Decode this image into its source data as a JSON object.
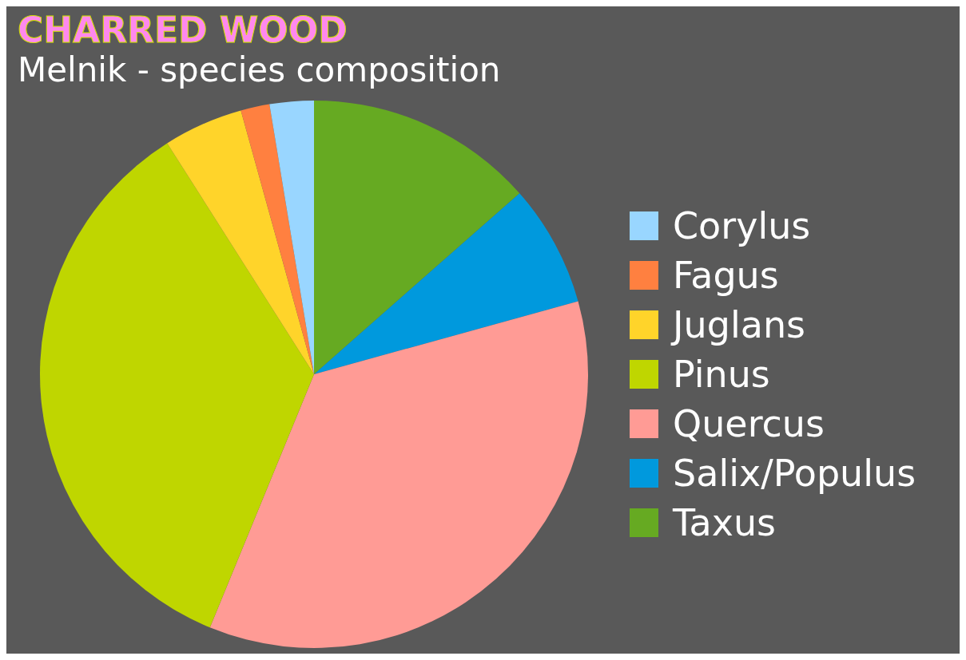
{
  "chart_data": {
    "type": "pie",
    "title": "CHARRED WOOD",
    "subtitle": "Melnik - species composition",
    "categories": [
      "Corylus",
      "Fagus",
      "Juglans",
      "Pinus",
      "Quercus",
      "Salix/Populus",
      "Taxus"
    ],
    "values": [
      2.6,
      1.7,
      4.7,
      34.8,
      35.5,
      7.2,
      13.5
    ],
    "colors": [
      "#99d6ff",
      "#ff8040",
      "#ffd42a",
      "#bfd600",
      "#ff9b95",
      "#0099dd",
      "#66aa22"
    ],
    "legend": "right"
  }
}
